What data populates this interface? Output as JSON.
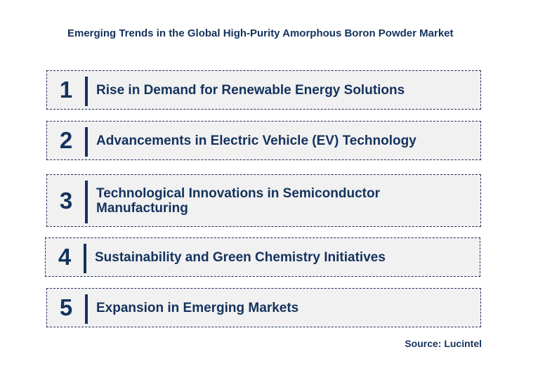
{
  "title": "Emerging Trends in the Global High-Purity Amorphous Boron Powder Market",
  "trends": [
    {
      "number": "1",
      "label": "Rise in Demand for Renewable Energy Solutions"
    },
    {
      "number": "2",
      "label": "Advancements in Electric Vehicle (EV) Technology"
    },
    {
      "number": "3",
      "label": "Technological Innovations in Semiconductor Manufacturing"
    },
    {
      "number": "4",
      "label": "Sustainability and Green Chemistry Initiatives"
    },
    {
      "number": "5",
      "label": "Expansion in Emerging Markets"
    }
  ],
  "source": "Source: Lucintel"
}
